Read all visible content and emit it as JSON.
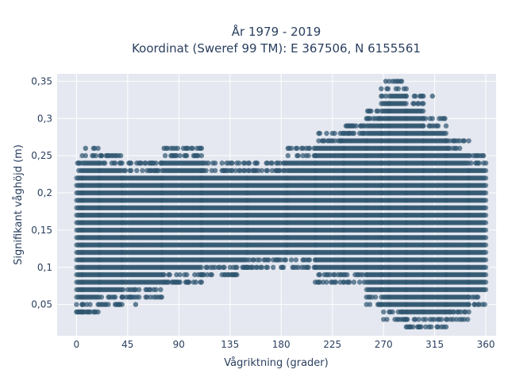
{
  "chart_data": {
    "type": "scatter",
    "title_line1": "År 1979 - 2019",
    "title_line2": "Koordinat (Sweref 99 TM): E 367506, N 6155561",
    "xlabel": "Vågriktning (grader)",
    "ylabel": "Signifikant våghöjd (m)",
    "xlim": [
      -17,
      369
    ],
    "ylim": [
      0.008,
      0.36
    ],
    "xticks": [
      0,
      45,
      90,
      135,
      180,
      225,
      270,
      315,
      360
    ],
    "xtick_labels": [
      "0",
      "45",
      "90",
      "135",
      "180",
      "225",
      "270",
      "315",
      "360"
    ],
    "yticks": [
      0.05,
      0.1,
      0.15,
      0.2,
      0.25,
      0.3,
      0.35
    ],
    "ytick_labels": [
      "0,05",
      "0,1",
      "0,15",
      "0,2",
      "0,25",
      "0,3",
      "0,35"
    ],
    "grid": true,
    "legend": "none",
    "marker_color": "#2f5670",
    "plot_bg": "#e5e8f0",
    "paper_bg": "#ffffff",
    "y_quantization": 0.01,
    "x_quantization": 1,
    "series": [
      {
        "bands": [
          {
            "x": [
              0,
              5
            ],
            "y": [
              0.04,
              0.24
            ]
          },
          {
            "x": [
              5,
              20
            ],
            "y": [
              0.04,
              0.26
            ]
          },
          {
            "x": [
              20,
              40
            ],
            "y": [
              0.05,
              0.25
            ]
          },
          {
            "x": [
              40,
              75
            ],
            "y": [
              0.06,
              0.24
            ]
          },
          {
            "x": [
              75,
              110
            ],
            "y": [
              0.08,
              0.26
            ]
          },
          {
            "x": [
              110,
              150
            ],
            "y": [
              0.09,
              0.24
            ]
          },
          {
            "x": [
              150,
              185
            ],
            "y": [
              0.1,
              0.24
            ]
          },
          {
            "x": [
              185,
              210
            ],
            "y": [
              0.1,
              0.26
            ]
          },
          {
            "x": [
              210,
              235
            ],
            "y": [
              0.08,
              0.28
            ]
          },
          {
            "x": [
              235,
              255
            ],
            "y": [
              0.08,
              0.29
            ]
          },
          {
            "x": [
              255,
              268
            ],
            "y": [
              0.05,
              0.31
            ]
          },
          {
            "x": [
              268,
              275
            ],
            "y": [
              0.03,
              0.34
            ]
          },
          {
            "x": [
              275,
              290
            ],
            "y": [
              0.03,
              0.35
            ]
          },
          {
            "x": [
              290,
              305
            ],
            "y": [
              0.02,
              0.33
            ]
          },
          {
            "x": [
              305,
              325
            ],
            "y": [
              0.02,
              0.3
            ]
          },
          {
            "x": [
              325,
              345
            ],
            "y": [
              0.03,
              0.27
            ]
          },
          {
            "x": [
              345,
              360
            ],
            "y": [
              0.05,
              0.25
            ]
          }
        ],
        "outliers": [
          {
            "x": 0,
            "y": 0.04
          },
          {
            "x": 10,
            "y": 0.04
          },
          {
            "x": 8,
            "y": 0.26
          },
          {
            "x": 22,
            "y": 0.25
          },
          {
            "x": 38,
            "y": 0.05
          },
          {
            "x": 52,
            "y": 0.05
          },
          {
            "x": 77,
            "y": 0.26
          },
          {
            "x": 98,
            "y": 0.08
          },
          {
            "x": 227,
            "y": 0.08
          },
          {
            "x": 205,
            "y": 0.26
          },
          {
            "x": 232,
            "y": 0.27
          },
          {
            "x": 250,
            "y": 0.29
          },
          {
            "x": 272,
            "y": 0.35
          },
          {
            "x": 280,
            "y": 0.35
          },
          {
            "x": 313,
            "y": 0.33
          },
          {
            "x": 293,
            "y": 0.02
          },
          {
            "x": 301,
            "y": 0.02
          },
          {
            "x": 310,
            "y": 0.02
          },
          {
            "x": 323,
            "y": 0.3
          },
          {
            "x": 341,
            "y": 0.27
          },
          {
            "x": 336,
            "y": 0.04
          },
          {
            "x": 355,
            "y": 0.25
          },
          {
            "x": 350,
            "y": 0.05
          }
        ]
      }
    ]
  }
}
